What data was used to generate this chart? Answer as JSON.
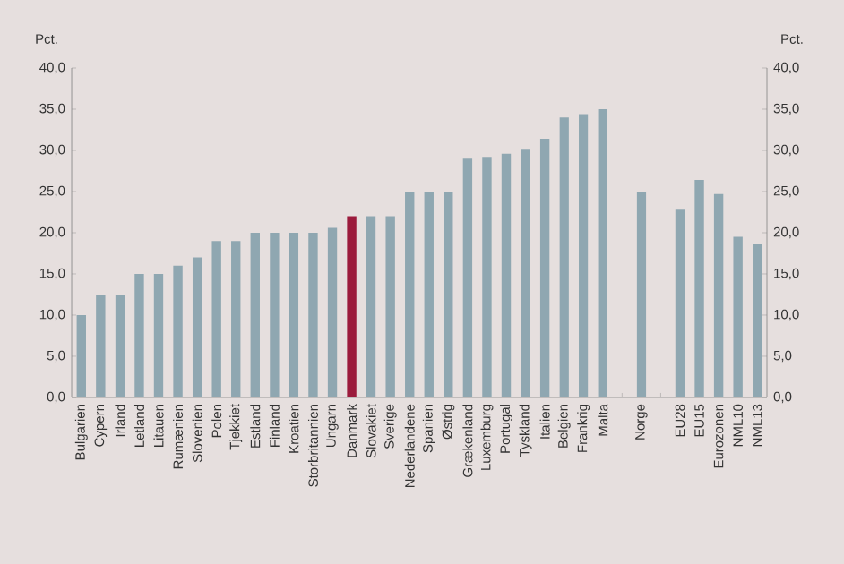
{
  "chart_data": {
    "type": "bar",
    "ylabel": "Pct.",
    "y2label": "Pct.",
    "categories": [
      "Bulgarien",
      "Cypern",
      "Irland",
      "Letland",
      "Litauen",
      "Rumænien",
      "Slovenien",
      "Polen",
      "Tjekkiet",
      "Estland",
      "Finland",
      "Kroatien",
      "Storbritannien",
      "Ungarn",
      "Danmark",
      "Slovakiet",
      "Sverige",
      "Nederlandene",
      "Spanien",
      "Østrig",
      "Grækenland",
      "Luxemburg",
      "Portugal",
      "Tyskland",
      "Italien",
      "Belgien",
      "Frankrig",
      "Malta",
      null,
      "Norge",
      null,
      "EU28",
      "EU15",
      "Eurozonen",
      "NML10",
      "NML13"
    ],
    "values": [
      10,
      12.5,
      12.5,
      15,
      15,
      16,
      17,
      19,
      19,
      20,
      20,
      20,
      20,
      20.6,
      22,
      22,
      22,
      25,
      25,
      25,
      29,
      29.2,
      29.6,
      30.2,
      31.4,
      34,
      34.4,
      35,
      null,
      25,
      null,
      22.8,
      26.4,
      24.7,
      19.5,
      18.6
    ],
    "colors": [
      "#8fa7b1",
      "#8fa7b1",
      "#8fa7b1",
      "#8fa7b1",
      "#8fa7b1",
      "#8fa7b1",
      "#8fa7b1",
      "#8fa7b1",
      "#8fa7b1",
      "#8fa7b1",
      "#8fa7b1",
      "#8fa7b1",
      "#8fa7b1",
      "#8fa7b1",
      "#9b1b3c",
      "#8fa7b1",
      "#8fa7b1",
      "#8fa7b1",
      "#8fa7b1",
      "#8fa7b1",
      "#8fa7b1",
      "#8fa7b1",
      "#8fa7b1",
      "#8fa7b1",
      "#8fa7b1",
      "#8fa7b1",
      "#8fa7b1",
      "#8fa7b1",
      "#8fa7b1",
      "#8fa7b1",
      "#8fa7b1",
      "#8fa7b1",
      "#8fa7b1",
      "#8fa7b1",
      "#8fa7b1",
      "#8fa7b1"
    ],
    "ylim": [
      0,
      40
    ],
    "yticks": [
      {
        "value": 0,
        "label": "0,0"
      },
      {
        "value": 5,
        "label": "5,0"
      },
      {
        "value": 10,
        "label": "10,0"
      },
      {
        "value": 15,
        "label": "15,0"
      },
      {
        "value": 20,
        "label": "20,0"
      },
      {
        "value": 25,
        "label": "25,0"
      },
      {
        "value": 30,
        "label": "30,0"
      },
      {
        "value": 35,
        "label": "35,0"
      },
      {
        "value": 40,
        "label": "40,0"
      }
    ],
    "y2lim": [
      0,
      40
    ],
    "y2ticks": [
      {
        "value": 0,
        "label": "0,0"
      },
      {
        "value": 5,
        "label": "5,0"
      },
      {
        "value": 10,
        "label": "10,0"
      },
      {
        "value": 15,
        "label": "15,0"
      },
      {
        "value": 20,
        "label": "20,0"
      },
      {
        "value": 25,
        "label": "25,0"
      },
      {
        "value": 30,
        "label": "30,0"
      },
      {
        "value": 35,
        "label": "35,0"
      },
      {
        "value": 40,
        "label": "40,0"
      }
    ]
  }
}
